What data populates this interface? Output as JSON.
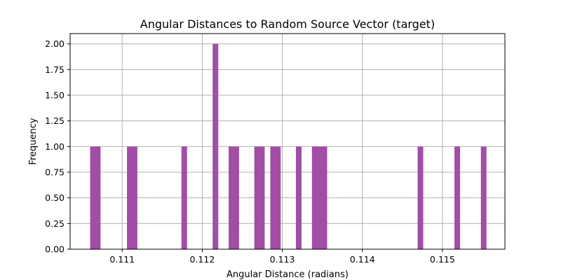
{
  "chart_data": {
    "type": "bar",
    "title": "Angular Distances to Random Source Vector (target)",
    "xlabel": "Angular Distance (radians)",
    "ylabel": "Frequency",
    "xlim": [
      0.11035,
      0.11578
    ],
    "ylim": [
      0.0,
      2.1
    ],
    "xticks": [
      0.111,
      0.112,
      0.113,
      0.114,
      0.115
    ],
    "xtick_labels": [
      "0.111",
      "0.112",
      "0.113",
      "0.114",
      "0.115"
    ],
    "yticks": [
      0.0,
      0.25,
      0.5,
      0.75,
      1.0,
      1.25,
      1.5,
      1.75,
      2.0
    ],
    "ytick_labels": [
      "0.00",
      "0.25",
      "0.50",
      "0.75",
      "1.00",
      "1.25",
      "1.50",
      "1.75",
      "2.00"
    ],
    "grid": true,
    "color": "#a24da6",
    "bins": [
      {
        "x0": 0.1106,
        "x1": 0.11073,
        "count": 1
      },
      {
        "x0": 0.11106,
        "x1": 0.11119,
        "count": 1
      },
      {
        "x0": 0.11174,
        "x1": 0.11181,
        "count": 1
      },
      {
        "x0": 0.11213,
        "x1": 0.1122,
        "count": 2
      },
      {
        "x0": 0.11233,
        "x1": 0.11246,
        "count": 1
      },
      {
        "x0": 0.11265,
        "x1": 0.11278,
        "count": 1
      },
      {
        "x0": 0.11285,
        "x1": 0.11298,
        "count": 1
      },
      {
        "x0": 0.11317,
        "x1": 0.11324,
        "count": 1
      },
      {
        "x0": 0.11337,
        "x1": 0.11356,
        "count": 1
      },
      {
        "x0": 0.11469,
        "x1": 0.11476,
        "count": 1
      },
      {
        "x0": 0.11515,
        "x1": 0.11522,
        "count": 1
      },
      {
        "x0": 0.11548,
        "x1": 0.11555,
        "count": 1
      }
    ]
  }
}
